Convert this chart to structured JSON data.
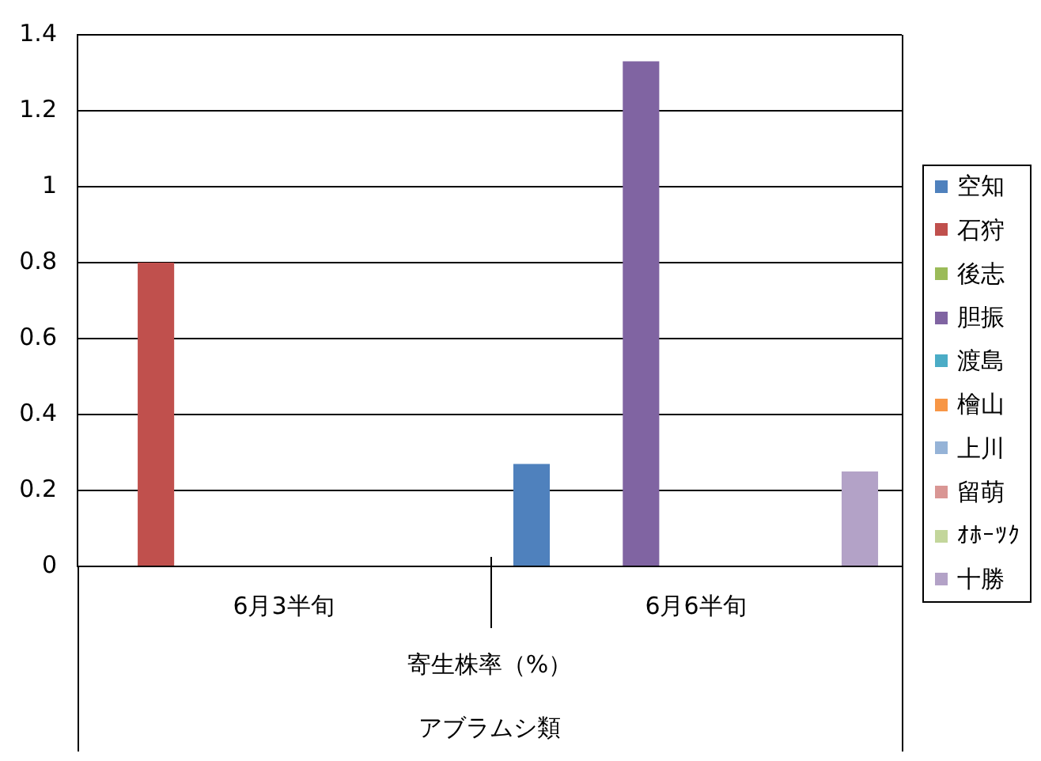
{
  "chart_data": {
    "type": "bar",
    "categories": [
      "6月3半旬",
      "6月6半旬"
    ],
    "xlabel": "寄生株率（%）",
    "annotations": [
      "アブラムシ類"
    ],
    "series": [
      {
        "name": "空知",
        "color": "#4f81bd",
        "values": [
          null,
          0.27
        ]
      },
      {
        "name": "石狩",
        "color": "#c0504d",
        "values": [
          0.8,
          null
        ]
      },
      {
        "name": "後志",
        "color": "#9bbb59",
        "values": [
          null,
          null
        ]
      },
      {
        "name": "胆振",
        "color": "#8064a2",
        "values": [
          null,
          1.33
        ]
      },
      {
        "name": "渡島",
        "color": "#4bacc6",
        "values": [
          null,
          null
        ]
      },
      {
        "name": "檜山",
        "color": "#f79646",
        "values": [
          null,
          null
        ]
      },
      {
        "name": "上川",
        "color": "#95b3d7",
        "values": [
          null,
          null
        ]
      },
      {
        "name": "留萌",
        "color": "#d99694",
        "values": [
          null,
          null
        ]
      },
      {
        "name": "ｵﾎｰﾂｸ",
        "color": "#c3d69b",
        "values": [
          null,
          null
        ]
      },
      {
        "name": "十勝",
        "color": "#b3a2c7",
        "values": [
          null,
          0.25
        ]
      }
    ],
    "ylim": [
      0,
      1.4
    ],
    "yticks": [
      0,
      0.2,
      0.4,
      0.6,
      0.8,
      1,
      1.2,
      1.4
    ],
    "grid": "y",
    "legend": "right"
  }
}
